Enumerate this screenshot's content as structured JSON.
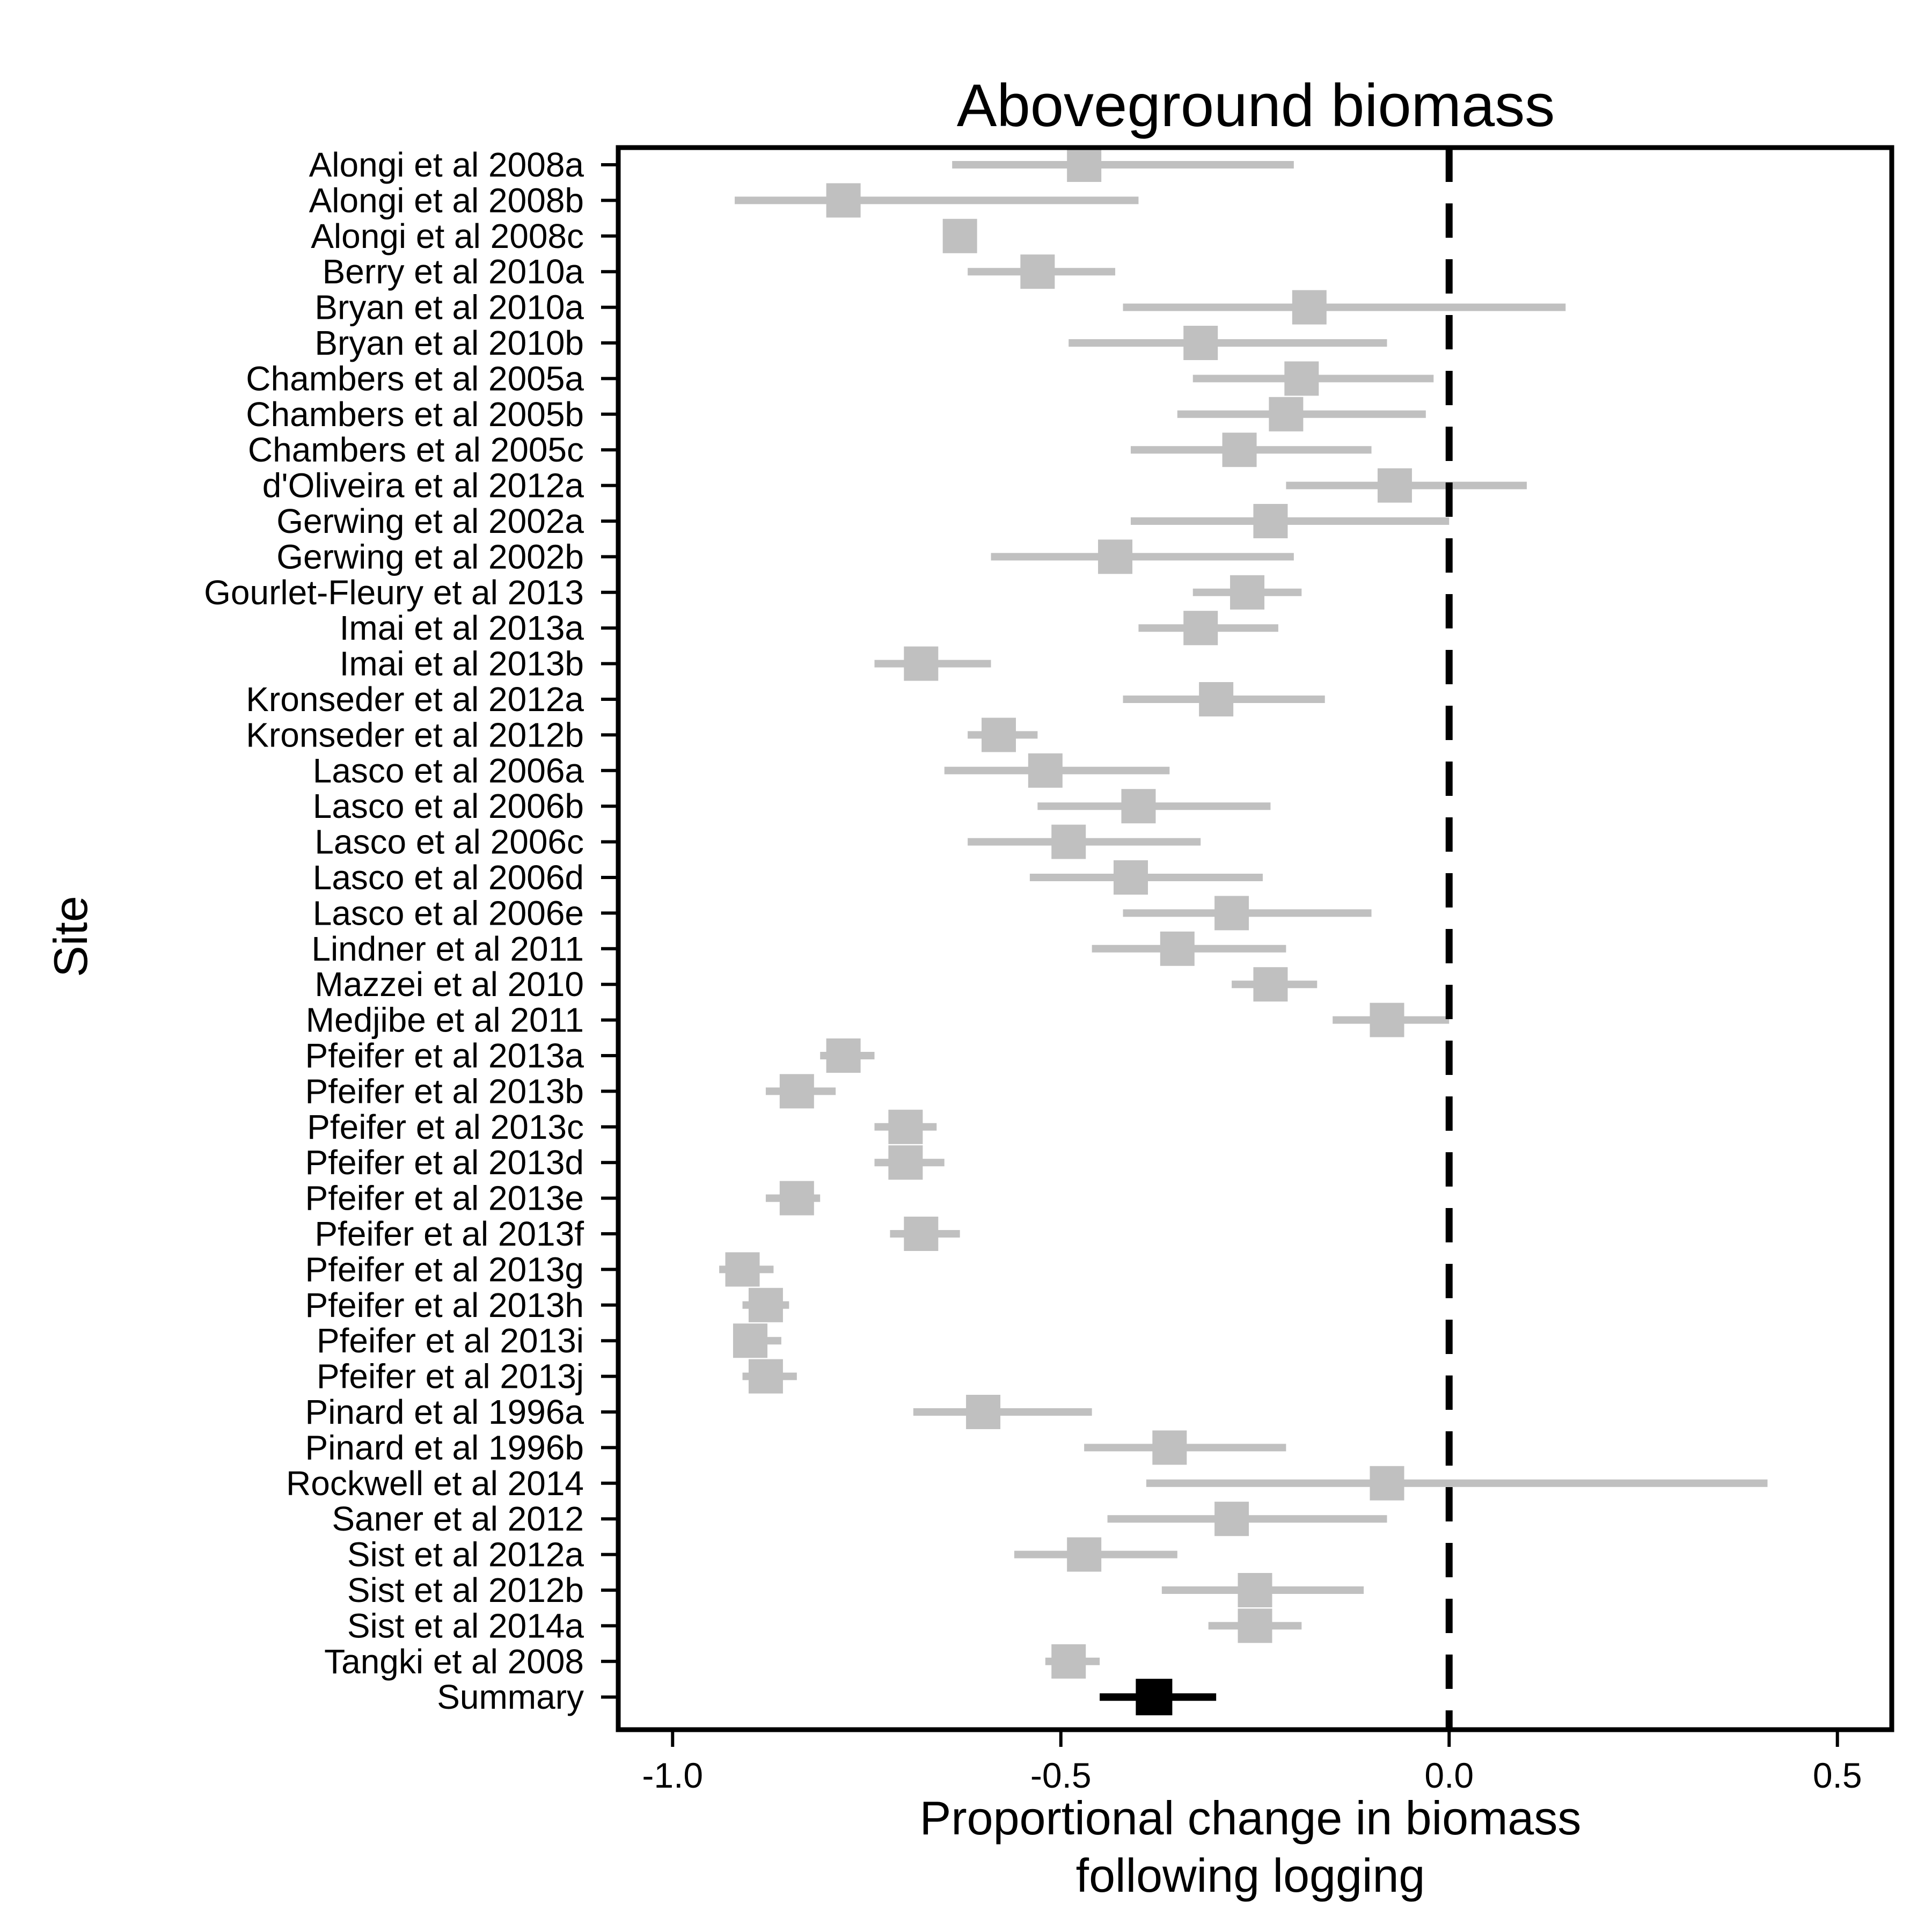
{
  "chart_data": {
    "type": "forest",
    "title": "Aboveground biomass",
    "xlabel": [
      "Proportional change in biomass",
      "following logging"
    ],
    "ylabel": "Site",
    "xlim": [
      -1.07,
      0.57
    ],
    "xticks": [
      -1.0,
      -0.5,
      0.0,
      0.5
    ],
    "xtick_labels": [
      "-1.0",
      "-0.5",
      "0.0",
      "0.5"
    ],
    "reference_line": 0.0,
    "colors": {
      "study": "#c0c0c0",
      "summary": "#000000",
      "axis": "#000000"
    },
    "studies": [
      {
        "label": "Alongi et al 2008a",
        "est": -0.47,
        "lo": -0.64,
        "hi": -0.2
      },
      {
        "label": "Alongi et al 2008b",
        "est": -0.78,
        "lo": -0.92,
        "hi": -0.4
      },
      {
        "label": "Alongi et al 2008c",
        "est": -0.63,
        "lo": -0.63,
        "hi": -0.63
      },
      {
        "label": "Berry et al 2010a",
        "est": -0.53,
        "lo": -0.62,
        "hi": -0.43
      },
      {
        "label": "Bryan et al 2010a",
        "est": -0.18,
        "lo": -0.42,
        "hi": 0.15
      },
      {
        "label": "Bryan et al 2010b",
        "est": -0.32,
        "lo": -0.49,
        "hi": -0.08
      },
      {
        "label": "Chambers et al 2005a",
        "est": -0.19,
        "lo": -0.33,
        "hi": -0.02
      },
      {
        "label": "Chambers et al 2005b",
        "est": -0.21,
        "lo": -0.35,
        "hi": -0.03
      },
      {
        "label": "Chambers et al 2005c",
        "est": -0.27,
        "lo": -0.41,
        "hi": -0.1
      },
      {
        "label": "d'Oliveira et al 2012a",
        "est": -0.07,
        "lo": -0.21,
        "hi": 0.1
      },
      {
        "label": "Gerwing et al 2002a",
        "est": -0.23,
        "lo": -0.41,
        "hi": 0.0
      },
      {
        "label": "Gerwing et al 2002b",
        "est": -0.43,
        "lo": -0.59,
        "hi": -0.2
      },
      {
        "label": "Gourlet-Fleury et al 2013",
        "est": -0.26,
        "lo": -0.33,
        "hi": -0.19
      },
      {
        "label": "Imai et al 2013a",
        "est": -0.32,
        "lo": -0.4,
        "hi": -0.22
      },
      {
        "label": "Imai et al 2013b",
        "est": -0.68,
        "lo": -0.74,
        "hi": -0.59
      },
      {
        "label": "Kronseder et al 2012a",
        "est": -0.3,
        "lo": -0.42,
        "hi": -0.16
      },
      {
        "label": "Kronseder et al 2012b",
        "est": -0.58,
        "lo": -0.62,
        "hi": -0.53
      },
      {
        "label": "Lasco et al 2006a",
        "est": -0.52,
        "lo": -0.65,
        "hi": -0.36
      },
      {
        "label": "Lasco et al 2006b",
        "est": -0.4,
        "lo": -0.53,
        "hi": -0.23
      },
      {
        "label": "Lasco et al 2006c",
        "est": -0.49,
        "lo": -0.62,
        "hi": -0.32
      },
      {
        "label": "Lasco et al 2006d",
        "est": -0.41,
        "lo": -0.54,
        "hi": -0.24
      },
      {
        "label": "Lasco et al 2006e",
        "est": -0.28,
        "lo": -0.42,
        "hi": -0.1
      },
      {
        "label": "Lindner et al 2011",
        "est": -0.35,
        "lo": -0.46,
        "hi": -0.21
      },
      {
        "label": "Mazzei et al 2010",
        "est": -0.23,
        "lo": -0.28,
        "hi": -0.17
      },
      {
        "label": "Medjibe et al 2011",
        "est": -0.08,
        "lo": -0.15,
        "hi": 0.0
      },
      {
        "label": "Pfeifer et al 2013a",
        "est": -0.78,
        "lo": -0.81,
        "hi": -0.74
      },
      {
        "label": "Pfeifer et al 2013b",
        "est": -0.84,
        "lo": -0.88,
        "hi": -0.79
      },
      {
        "label": "Pfeifer et al 2013c",
        "est": -0.7,
        "lo": -0.74,
        "hi": -0.66
      },
      {
        "label": "Pfeifer et al 2013d",
        "est": -0.7,
        "lo": -0.74,
        "hi": -0.65
      },
      {
        "label": "Pfeifer et al 2013e",
        "est": -0.84,
        "lo": -0.88,
        "hi": -0.81
      },
      {
        "label": "Pfeifer et al 2013f",
        "est": -0.68,
        "lo": -0.72,
        "hi": -0.63
      },
      {
        "label": "Pfeifer et al 2013g",
        "est": -0.91,
        "lo": -0.94,
        "hi": -0.87
      },
      {
        "label": "Pfeifer et al 2013h",
        "est": -0.88,
        "lo": -0.91,
        "hi": -0.85
      },
      {
        "label": "Pfeifer et al 2013i",
        "est": -0.9,
        "lo": -0.92,
        "hi": -0.86
      },
      {
        "label": "Pfeifer et al 2013j",
        "est": -0.88,
        "lo": -0.91,
        "hi": -0.84
      },
      {
        "label": "Pinard et al 1996a",
        "est": -0.6,
        "lo": -0.69,
        "hi": -0.46
      },
      {
        "label": "Pinard et al 1996b",
        "est": -0.36,
        "lo": -0.47,
        "hi": -0.21
      },
      {
        "label": "Rockwell et al 2014",
        "est": -0.08,
        "lo": -0.39,
        "hi": 0.41
      },
      {
        "label": "Saner et al 2012",
        "est": -0.28,
        "lo": -0.44,
        "hi": -0.08
      },
      {
        "label": "Sist et al 2012a",
        "est": -0.47,
        "lo": -0.56,
        "hi": -0.35
      },
      {
        "label": "Sist et al 2012b",
        "est": -0.25,
        "lo": -0.37,
        "hi": -0.11
      },
      {
        "label": "Sist et al 2014a",
        "est": -0.25,
        "lo": -0.31,
        "hi": -0.19
      },
      {
        "label": "Tangki et al 2008",
        "est": -0.49,
        "lo": -0.52,
        "hi": -0.45
      }
    ],
    "summary": {
      "label": "Summary",
      "est": -0.38,
      "lo": -0.45,
      "hi": -0.3
    }
  }
}
